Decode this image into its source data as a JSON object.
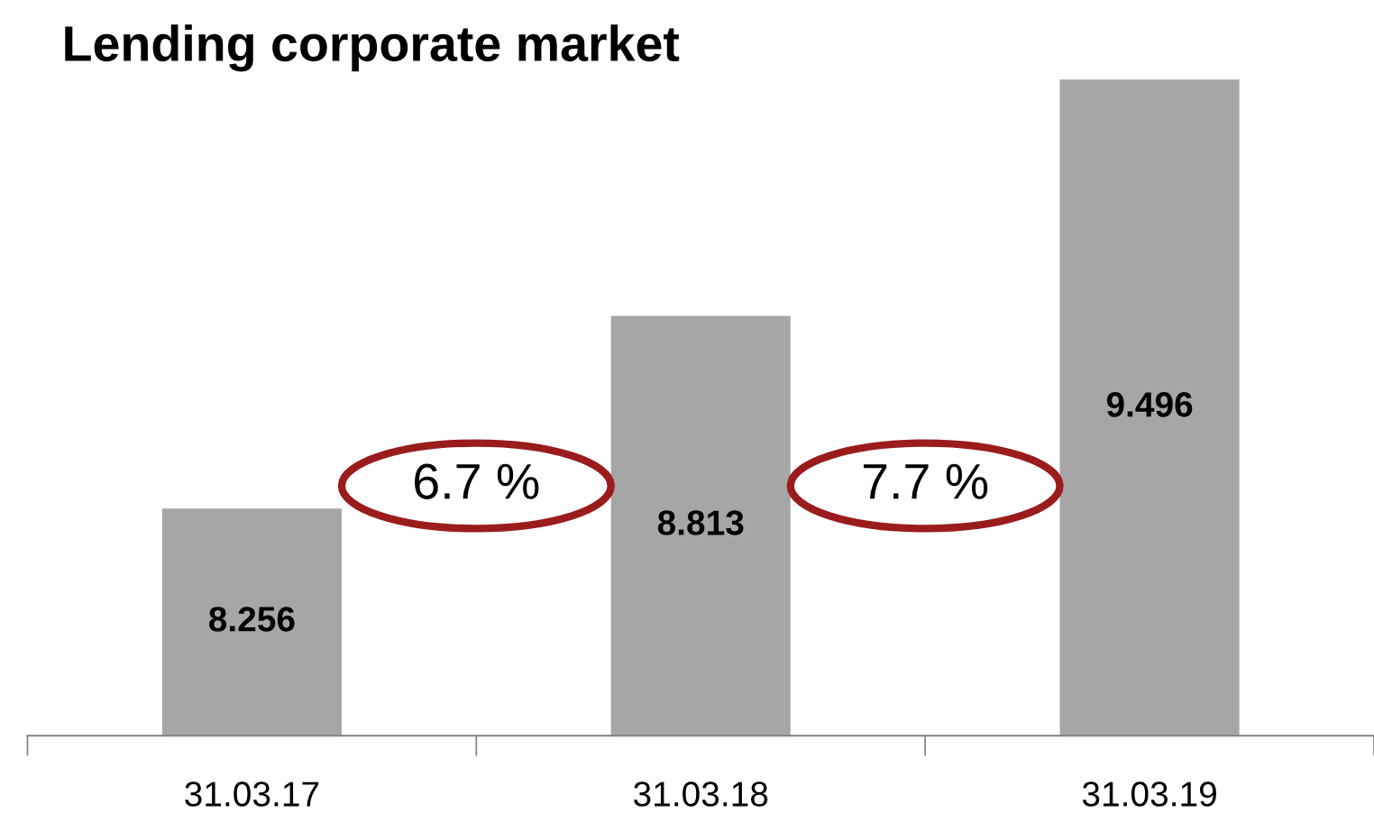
{
  "chart_data": {
    "type": "bar",
    "title": "Lending corporate market",
    "categories": [
      "31.03.17",
      "31.03.18",
      "31.03.19"
    ],
    "values": [
      8.256,
      8.813,
      9.496
    ],
    "color": "#a6a6a6",
    "ylim": [
      7.6,
      9.5
    ],
    "data_labels": true,
    "tick_labels": "x",
    "grid": false,
    "annotations": [
      "6.7 %",
      "7.7 %"
    ]
  }
}
